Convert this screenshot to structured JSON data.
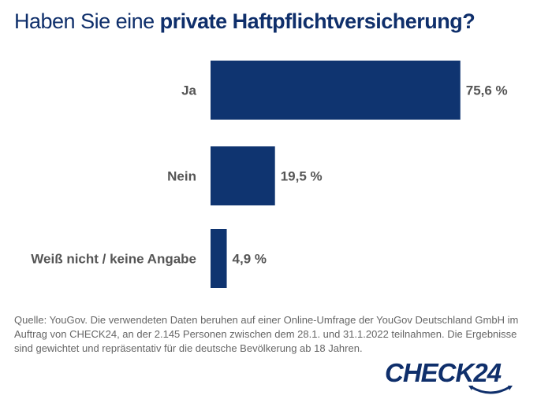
{
  "title": {
    "light": "Haben Sie eine ",
    "bold": "private Haftpflichtversicherung?"
  },
  "chart_data": {
    "type": "bar",
    "orientation": "horizontal",
    "categories": [
      "Ja",
      "Nein",
      "Weiß nicht / keine Angabe"
    ],
    "values": [
      75.6,
      19.5,
      4.9
    ],
    "data_labels": [
      "75,6 %",
      "19,5 %",
      "4,9 %"
    ],
    "unit": "%",
    "xlim": [
      0,
      100
    ],
    "grid": false,
    "bar_color": "#0f3470"
  },
  "source": "Quelle: YouGov. Die verwendeten Daten beruhen auf einer Online-Umfrage der YouGov Deutschland GmbH im Auftrag von CHECK24, an der 2.145 Personen zwischen dem 28.1. und 31.1.2022 teilnahmen. Die Ergebnisse sind gewichtet und repräsentativ für die deutsche Bevölkerung ab 18 Jahren.",
  "logo": "CHECK24"
}
